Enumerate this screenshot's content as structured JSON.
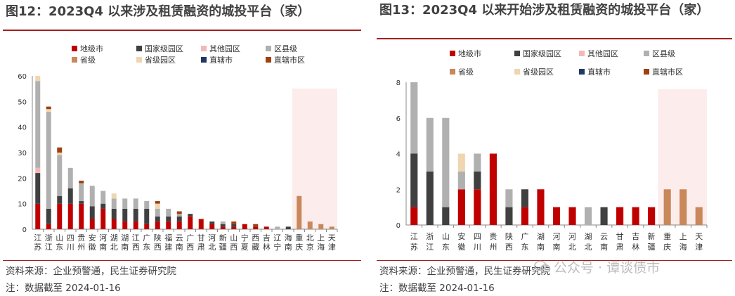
{
  "colors": {
    "地级市": "#c00000",
    "国家级园区": "#404040",
    "其他园区": "#f2b8b8",
    "区县级": "#b0b0b0",
    "省级": "#c8885a",
    "省级园区": "#efd6b0",
    "直辖市": "#1f3864",
    "直辖市区": "#a04010",
    "highlight": "#fdecec",
    "title_rule": "#a32020"
  },
  "watermark": {
    "text": "公众号 · 谭谈债市",
    "icon": "wechat-icon"
  },
  "left": {
    "title": "图12：2023Q4 以来涉及租赁融资的城投平台（家）",
    "source": "资料来源：企业预警通，民生证券研究院",
    "note": "注：数据截至 2024-01-16",
    "chart_data": {
      "type": "bar",
      "stacked": true,
      "categories": [
        "江苏",
        "浙江",
        "山东",
        "四川",
        "贵州",
        "安徽",
        "河南",
        "湖北",
        "湖南",
        "江西",
        "广东",
        "陕西",
        "福建",
        "云南",
        "广西",
        "甘肃",
        "河北",
        "新疆",
        "山西",
        "宁夏",
        "西藏",
        "吉林",
        "辽宁",
        "海南",
        "重庆",
        "北京",
        "上海",
        "天津"
      ],
      "series": [
        {
          "name": "地级市",
          "values": [
            10,
            2,
            10,
            10,
            10,
            4,
            8,
            4,
            3,
            3,
            2,
            3,
            3,
            3,
            5,
            4,
            2,
            1,
            1,
            2,
            1,
            1,
            0,
            0,
            0,
            0,
            0,
            0
          ]
        },
        {
          "name": "国家级园区",
          "values": [
            12,
            6,
            3,
            6,
            1,
            5,
            2,
            4,
            5,
            5,
            6,
            2,
            2,
            2,
            1,
            0,
            1,
            1,
            1,
            0,
            0,
            0,
            0,
            1,
            0,
            0,
            0,
            0
          ]
        },
        {
          "name": "其他园区",
          "values": [
            2,
            0,
            0,
            0,
            0,
            0,
            0,
            0,
            0,
            0,
            0,
            0,
            0,
            0,
            0,
            0,
            0,
            0,
            0,
            0,
            0,
            0,
            0,
            0,
            0,
            0,
            0,
            0
          ]
        },
        {
          "name": "区县级",
          "values": [
            34,
            38,
            16,
            8,
            7,
            8,
            5,
            4,
            4,
            4,
            3,
            3,
            3,
            1,
            0,
            0,
            0,
            1,
            0,
            0,
            0,
            0,
            1,
            0,
            0,
            0,
            0,
            0
          ]
        },
        {
          "name": "省级",
          "values": [
            0,
            0,
            0,
            0,
            0,
            0,
            0,
            0,
            0,
            0,
            0,
            0,
            0,
            0,
            0,
            0,
            0,
            0,
            0,
            0,
            0,
            0,
            0,
            0,
            13,
            3,
            2,
            1
          ]
        },
        {
          "name": "省级园区",
          "values": [
            2,
            1,
            1,
            0,
            0,
            0,
            0,
            2,
            0,
            0,
            0,
            2,
            0,
            0,
            0,
            0,
            0,
            0,
            0,
            0,
            0,
            0,
            0,
            0,
            0,
            0,
            0,
            0
          ]
        },
        {
          "name": "直辖市",
          "values": [
            0,
            0,
            0,
            0,
            0,
            0,
            0,
            0,
            0,
            0,
            0,
            0,
            0,
            0,
            0,
            0,
            0,
            0,
            0,
            0,
            0,
            0,
            0,
            0,
            0,
            0,
            0,
            0
          ]
        },
        {
          "name": "直辖市区",
          "values": [
            0,
            1,
            2,
            0,
            1,
            0,
            0,
            0,
            0,
            0,
            0,
            1,
            0,
            1,
            0,
            0,
            0,
            0,
            1,
            0,
            1,
            0,
            0,
            0,
            0,
            0,
            0,
            0
          ]
        }
      ],
      "ylim": [
        0,
        60
      ],
      "yticks": [
        0,
        10,
        20,
        30,
        40,
        50,
        60
      ],
      "highlight_from": "重庆",
      "legend": "top"
    }
  },
  "right": {
    "title": "图13：2023Q4 以来开始涉及租赁融资的城投平台（家）",
    "source": "资料来源：企业预警通，民生证券研究院",
    "note": "注：数据截至 2024-01-16",
    "chart_data": {
      "type": "bar",
      "stacked": true,
      "categories": [
        "江苏",
        "浙江",
        "山东",
        "安徽",
        "四川",
        "贵州",
        "陕西",
        "广东",
        "湖南",
        "河南",
        "河北",
        "湖北",
        "云南",
        "甘肃",
        "吉林",
        "新疆",
        "重庆",
        "上海",
        "天津"
      ],
      "series": [
        {
          "name": "地级市",
          "values": [
            1,
            0,
            0,
            2,
            2,
            4,
            0,
            1,
            2,
            1,
            1,
            0,
            0,
            1,
            1,
            1,
            0,
            0,
            0
          ]
        },
        {
          "name": "国家级园区",
          "values": [
            3,
            3,
            1,
            0,
            1,
            0,
            1,
            1,
            0,
            0,
            0,
            0,
            1,
            0,
            0,
            0,
            0,
            0,
            0
          ]
        },
        {
          "name": "其他园区",
          "values": [
            0,
            0,
            0,
            0,
            0,
            0,
            0,
            0,
            0,
            0,
            0,
            0,
            0,
            0,
            0,
            0,
            0,
            0,
            0
          ]
        },
        {
          "name": "区县级",
          "values": [
            4,
            3,
            5,
            1,
            1,
            0,
            1,
            0,
            0,
            0,
            0,
            1,
            0,
            0,
            0,
            0,
            0,
            0,
            0
          ]
        },
        {
          "name": "省级",
          "values": [
            0,
            0,
            0,
            0,
            0,
            0,
            0,
            0,
            0,
            0,
            0,
            0,
            0,
            0,
            0,
            0,
            2,
            2,
            1
          ]
        },
        {
          "name": "省级园区",
          "values": [
            0,
            0,
            0,
            1,
            0,
            0,
            0,
            0,
            0,
            0,
            0,
            0,
            0,
            0,
            0,
            0,
            0,
            0,
            0
          ]
        },
        {
          "name": "直辖市",
          "values": [
            0,
            0,
            0,
            0,
            0,
            0,
            0,
            0,
            0,
            0,
            0,
            0,
            0,
            0,
            0,
            0,
            0,
            0,
            0
          ]
        },
        {
          "name": "直辖市区",
          "values": [
            0,
            0,
            0,
            0,
            0,
            0,
            0,
            0,
            0,
            0,
            0,
            0,
            0,
            0,
            0,
            0,
            0,
            0,
            0
          ]
        }
      ],
      "ylim": [
        0,
        8
      ],
      "yticks": [
        0,
        2,
        4,
        6,
        8
      ],
      "highlight_from": "重庆",
      "legend": "top"
    }
  }
}
